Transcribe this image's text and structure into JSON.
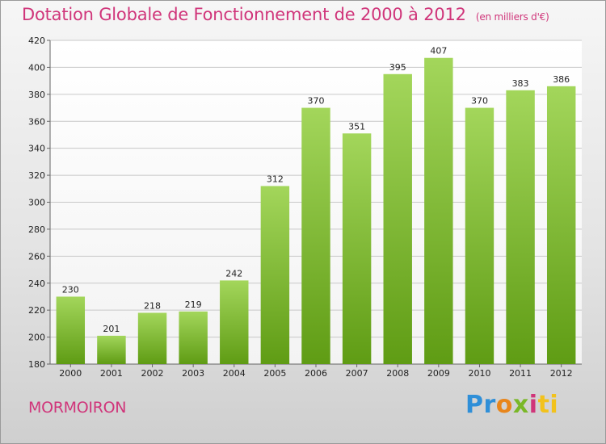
{
  "header": {
    "title": "Dotation Globale de Fonctionnement de 2000 à 2012",
    "subtitle": "(en milliers d'€)"
  },
  "footer": {
    "commune": "MORMOIRON",
    "logo_text": [
      "Pr",
      "o",
      "x",
      "i",
      "ti"
    ]
  },
  "colors": {
    "accent": "#d0357a",
    "bar_light": "#9fd256",
    "bar_dark": "#5e9b12",
    "grid": "#c8c8c8"
  },
  "chart_data": {
    "type": "bar",
    "title": "Dotation Globale de Fonctionnement de 2000 à 2012",
    "subtitle": "(en milliers d'€)",
    "xlabel": "",
    "ylabel": "",
    "categories": [
      "2000",
      "2001",
      "2002",
      "2003",
      "2004",
      "2005",
      "2006",
      "2007",
      "2008",
      "2009",
      "2010",
      "2011",
      "2012"
    ],
    "values": [
      230,
      201,
      218,
      219,
      242,
      312,
      370,
      351,
      395,
      407,
      370,
      383,
      386
    ],
    "ylim": [
      180,
      420
    ],
    "yticks": [
      180,
      200,
      220,
      240,
      260,
      280,
      300,
      320,
      340,
      360,
      380,
      400,
      420
    ],
    "grid": true,
    "data_labels": true
  }
}
